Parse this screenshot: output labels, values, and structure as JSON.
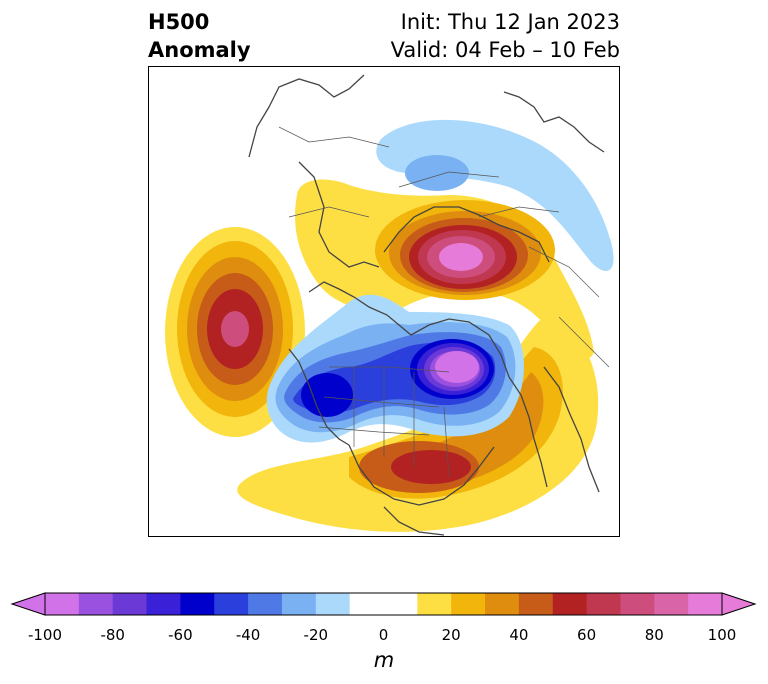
{
  "header": {
    "title_line1": "H500",
    "title_line2": "Anomaly",
    "init_text": "Init: Thu 12 Jan 2023",
    "valid_text": "Valid: 04 Feb – 10 Feb"
  },
  "colorbar": {
    "unit": "m",
    "min": -100,
    "max": 100,
    "step": 10,
    "extend": "both",
    "tick_labels": [
      "-100",
      "-80",
      "-60",
      "-40",
      "-20",
      "0",
      "20",
      "40",
      "60",
      "80",
      "100"
    ],
    "colors": [
      "#d272e9",
      "#9b51e0",
      "#6a39d6",
      "#3a20d6",
      "#0000cd",
      "#2b3fdc",
      "#4f7ae6",
      "#79b1f2",
      "#abd9fb",
      "#ffffff",
      "#ffffff",
      "#fedf43",
      "#f1b50b",
      "#de8d0e",
      "#c75b18",
      "#b22222",
      "#c0384f",
      "#cd4d7d",
      "#d964a8",
      "#e67bd9"
    ],
    "neg_end_color": "#d272e9",
    "pos_end_color": "#e67bd9"
  },
  "map": {
    "projection": "north-polar-stereographic",
    "anomaly_centers": [
      {
        "region": "Siberia / Russia",
        "sign": "positive",
        "peak_m": 90
      },
      {
        "region": "Hudson Bay / Eastern Canada",
        "sign": "negative",
        "peak_m": -100
      },
      {
        "region": "Central North Pacific",
        "sign": "positive",
        "peak_m": 80
      },
      {
        "region": "Western North America",
        "sign": "negative",
        "peak_m": -60
      },
      {
        "region": "Southeastern United States / Western Atlantic",
        "sign": "positive",
        "peak_m": 60
      },
      {
        "region": "Northern Europe / Scandinavia",
        "sign": "negative",
        "peak_m": -30
      }
    ]
  }
}
